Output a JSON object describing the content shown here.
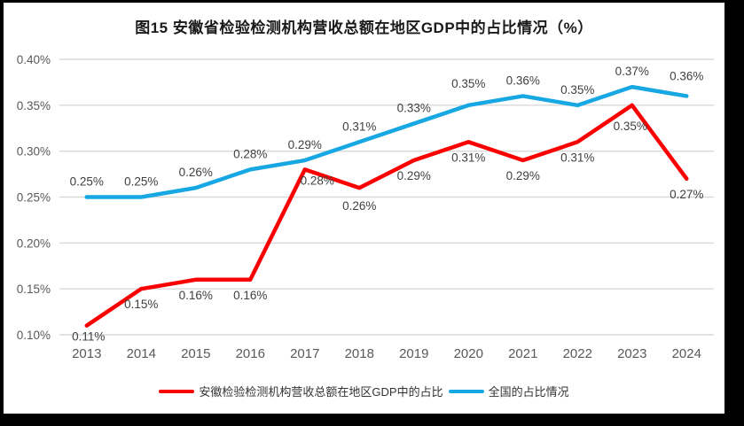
{
  "title": "图15 安徽省检验检测机构营收总额在地区GDP中的占比情况（%）",
  "chart_data": {
    "type": "line",
    "categories": [
      "2013",
      "2014",
      "2015",
      "2016",
      "2017",
      "2018",
      "2019",
      "2020",
      "2021",
      "2022",
      "2023",
      "2024"
    ],
    "series": [
      {
        "name": "安徽检验检测机构营收总额在地区GDP中的占比",
        "color": "#FA0000",
        "values": [
          0.11,
          0.15,
          0.16,
          0.16,
          0.28,
          0.26,
          0.29,
          0.31,
          0.29,
          0.31,
          0.35,
          0.27
        ],
        "labels": [
          "0.11%",
          "0.15%",
          "0.16%",
          "0.16%",
          "0.28%",
          "0.26%",
          "0.29%",
          "0.31%",
          "0.29%",
          "0.31%",
          "0.35%",
          "0.27%"
        ]
      },
      {
        "name": "全国的占比情况",
        "color": "#17A8E3",
        "values": [
          0.25,
          0.25,
          0.26,
          0.28,
          0.29,
          0.31,
          0.33,
          0.35,
          0.36,
          0.35,
          0.37,
          0.36
        ],
        "labels": [
          "0.25%",
          "0.25%",
          "0.26%",
          "0.28%",
          "0.29%",
          "0.31%",
          "0.33%",
          "0.35%",
          "0.36%",
          "0.35%",
          "0.37%",
          "0.36%"
        ]
      }
    ],
    "title": "图15 安徽省检验检测机构营收总额在地区GDP中的占比情况（%）",
    "xlabel": "",
    "ylabel": "",
    "ylim": [
      0.1,
      0.4
    ],
    "y_ticks": [
      "0.10%",
      "0.15%",
      "0.20%",
      "0.25%",
      "0.30%",
      "0.35%",
      "0.40%"
    ],
    "grid": true,
    "legend_position": "bottom",
    "colors": {
      "gridline": "#D9D9D9",
      "axis_label": "#595959",
      "data_label": "#404040"
    }
  }
}
